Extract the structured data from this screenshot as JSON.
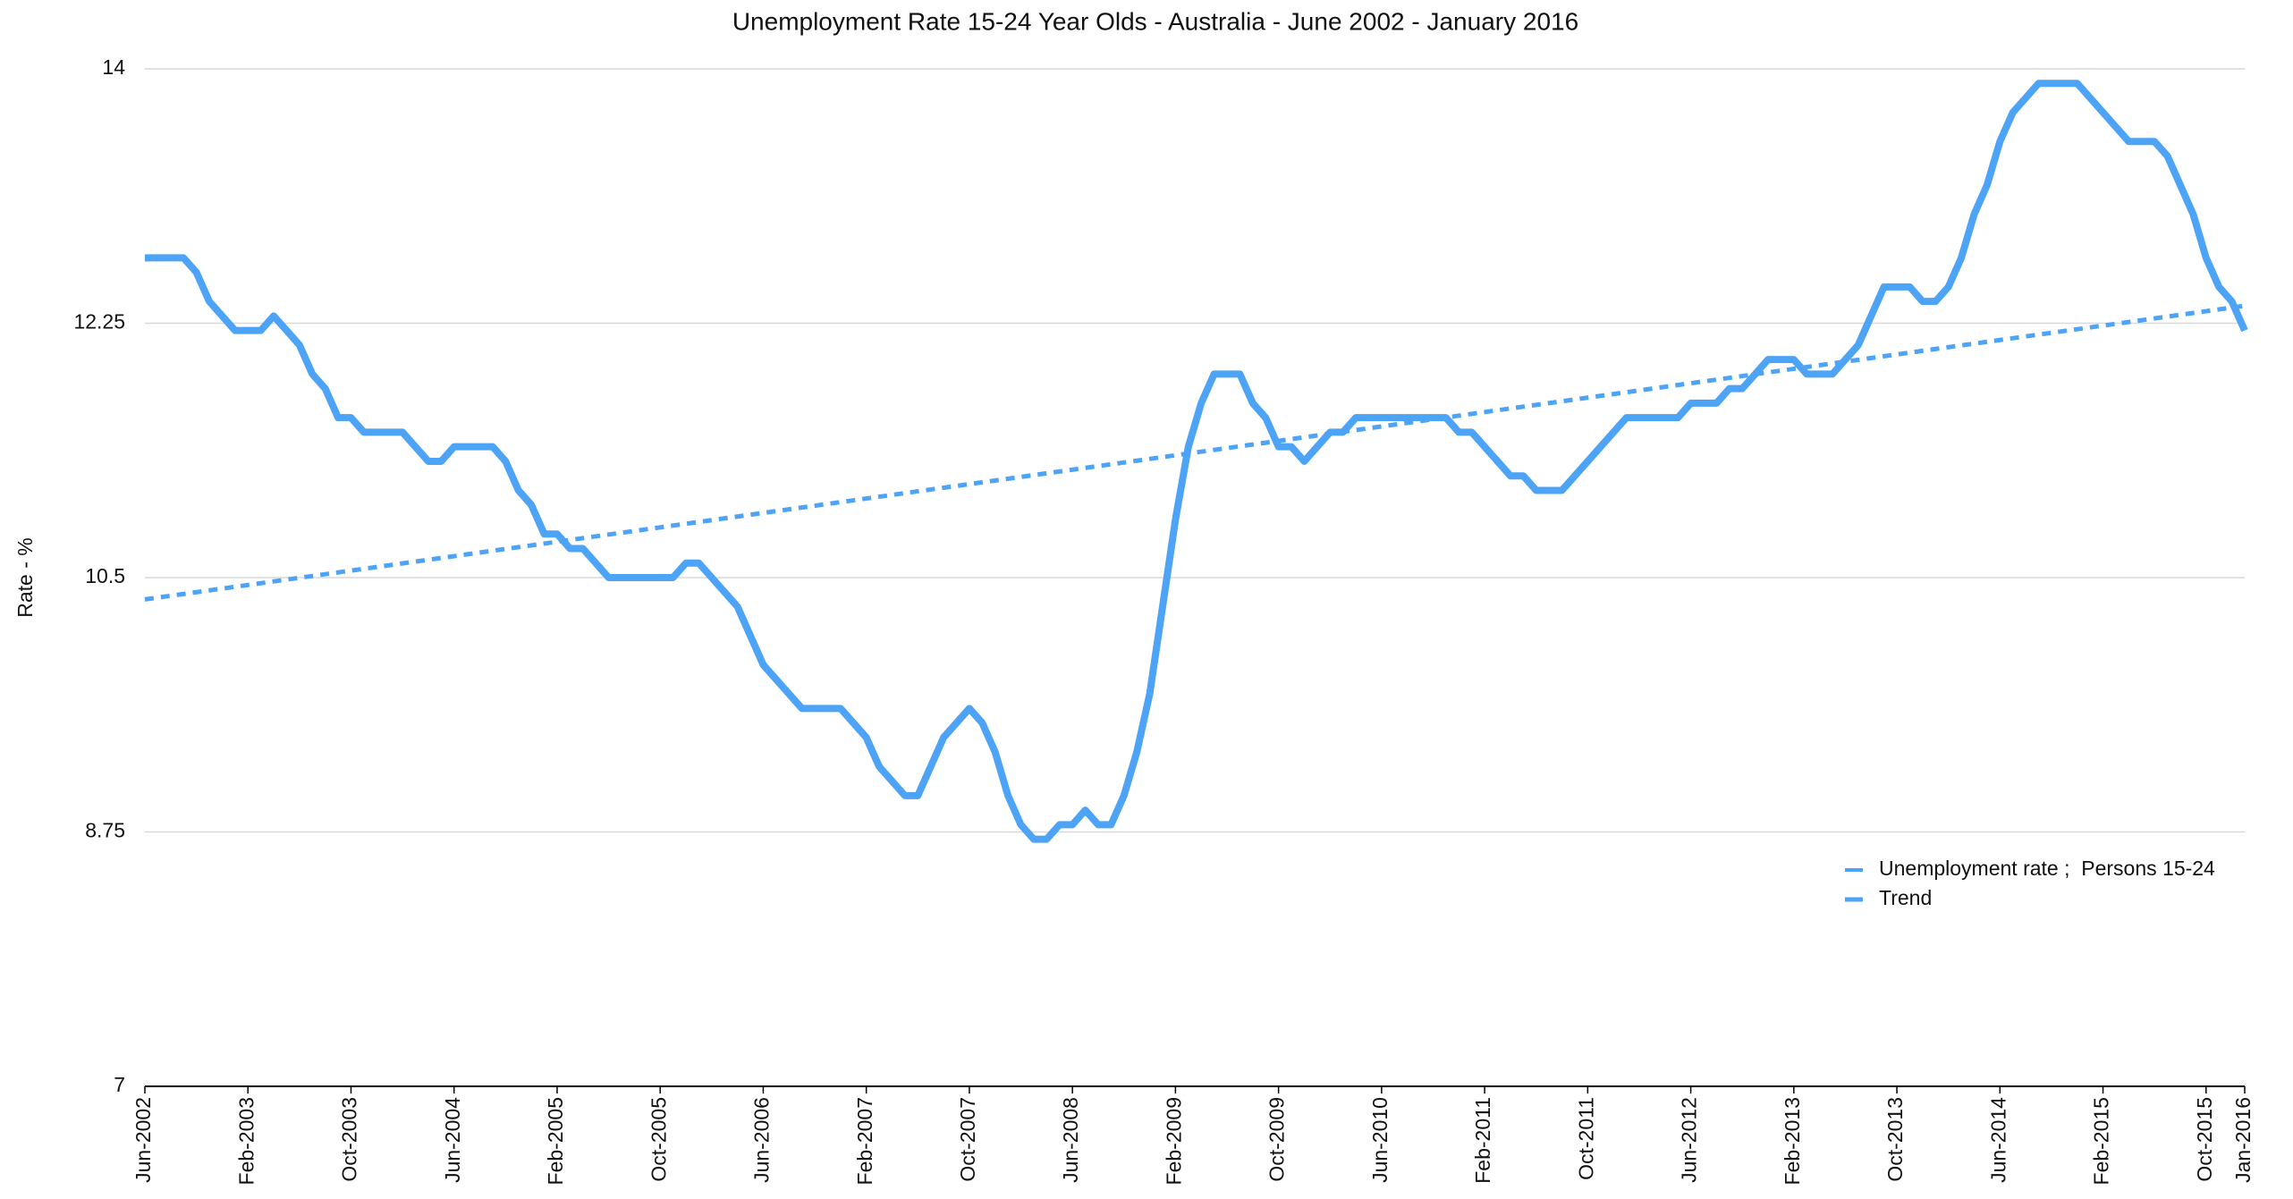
{
  "chart_data": {
    "type": "line",
    "title": "Unemployment Rate 15-24 Year Olds - Australia - June 2002 - January 2016",
    "y_label": "Rate - %",
    "categories": [
      "Jun-2002",
      null,
      null,
      null,
      null,
      null,
      null,
      null,
      "Feb-2003",
      null,
      null,
      null,
      null,
      null,
      null,
      null,
      "Oct-2003",
      null,
      null,
      null,
      null,
      null,
      null,
      null,
      "Jun-2004",
      null,
      null,
      null,
      null,
      null,
      null,
      null,
      "Feb-2005",
      null,
      null,
      null,
      null,
      null,
      null,
      null,
      "Oct-2005",
      null,
      null,
      null,
      null,
      null,
      null,
      null,
      "Jun-2006",
      null,
      null,
      null,
      null,
      null,
      null,
      null,
      "Feb-2007",
      null,
      null,
      null,
      null,
      null,
      null,
      null,
      "Oct-2007",
      null,
      null,
      null,
      null,
      null,
      null,
      null,
      "Jun-2008",
      null,
      null,
      null,
      null,
      null,
      null,
      null,
      "Feb-2009",
      null,
      null,
      null,
      null,
      null,
      null,
      null,
      "Oct-2009",
      null,
      null,
      null,
      null,
      null,
      null,
      null,
      "Jun-2010",
      null,
      null,
      null,
      null,
      null,
      null,
      null,
      "Feb-2011",
      null,
      null,
      null,
      null,
      null,
      null,
      null,
      "Oct-2011",
      null,
      null,
      null,
      null,
      null,
      null,
      null,
      "Jun-2012",
      null,
      null,
      null,
      null,
      null,
      null,
      null,
      "Feb-2013",
      null,
      null,
      null,
      null,
      null,
      null,
      null,
      "Oct-2013",
      null,
      null,
      null,
      null,
      null,
      null,
      null,
      "Jun-2014",
      null,
      null,
      null,
      null,
      null,
      null,
      null,
      "Feb-2015",
      null,
      null,
      null,
      null,
      null,
      null,
      null,
      "Oct-2015",
      null,
      null,
      "Jan-2016"
    ],
    "series": [
      {
        "name": "Unemployment rate ;  Persons 15-24",
        "color": "#4da3f5",
        "values": [
          12.7,
          12.7,
          12.7,
          12.7,
          12.6,
          12.4,
          12.3,
          12.2,
          12.2,
          12.2,
          12.3,
          12.2,
          12.1,
          11.9,
          11.8,
          11.6,
          11.6,
          11.5,
          11.5,
          11.5,
          11.5,
          11.4,
          11.3,
          11.3,
          11.4,
          11.4,
          11.4,
          11.4,
          11.3,
          11.1,
          11.0,
          10.8,
          10.8,
          10.7,
          10.7,
          10.6,
          10.5,
          10.5,
          10.5,
          10.5,
          10.5,
          10.5,
          10.6,
          10.6,
          10.5,
          10.4,
          10.3,
          10.1,
          9.9,
          9.8,
          9.7,
          9.6,
          9.6,
          9.6,
          9.6,
          9.5,
          9.4,
          9.2,
          9.1,
          9.0,
          9.0,
          9.2,
          9.4,
          9.5,
          9.6,
          9.5,
          9.3,
          9.0,
          8.8,
          8.7,
          8.7,
          8.8,
          8.8,
          8.9,
          8.8,
          8.8,
          9.0,
          9.3,
          9.7,
          10.3,
          10.9,
          11.4,
          11.7,
          11.9,
          11.9,
          11.9,
          11.7,
          11.6,
          11.4,
          11.4,
          11.3,
          11.4,
          11.5,
          11.5,
          11.6,
          11.6,
          11.6,
          11.6,
          11.6,
          11.6,
          11.6,
          11.6,
          11.5,
          11.5,
          11.4,
          11.3,
          11.2,
          11.2,
          11.1,
          11.1,
          11.1,
          11.2,
          11.3,
          11.4,
          11.5,
          11.6,
          11.6,
          11.6,
          11.6,
          11.6,
          11.7,
          11.7,
          11.7,
          11.8,
          11.8,
          11.9,
          12.0,
          12.0,
          12.0,
          11.9,
          11.9,
          11.9,
          12.0,
          12.1,
          12.3,
          12.5,
          12.5,
          12.5,
          12.4,
          12.4,
          12.5,
          12.7,
          13.0,
          13.2,
          13.5,
          13.7,
          13.8,
          13.9,
          13.9,
          13.9,
          13.9,
          13.8,
          13.7,
          13.6,
          13.5,
          13.5,
          13.5,
          13.4,
          13.2,
          13.0,
          12.7,
          12.5,
          12.4,
          12.2
        ]
      }
    ],
    "trend": {
      "name": "Trend",
      "color": "#4da3f5",
      "values": [
        10.35,
        12.37
      ]
    },
    "ylim": [
      7,
      14
    ],
    "yticks": [
      7,
      8.75,
      10.5,
      12.25,
      14
    ],
    "grid": true,
    "legend": "right"
  }
}
